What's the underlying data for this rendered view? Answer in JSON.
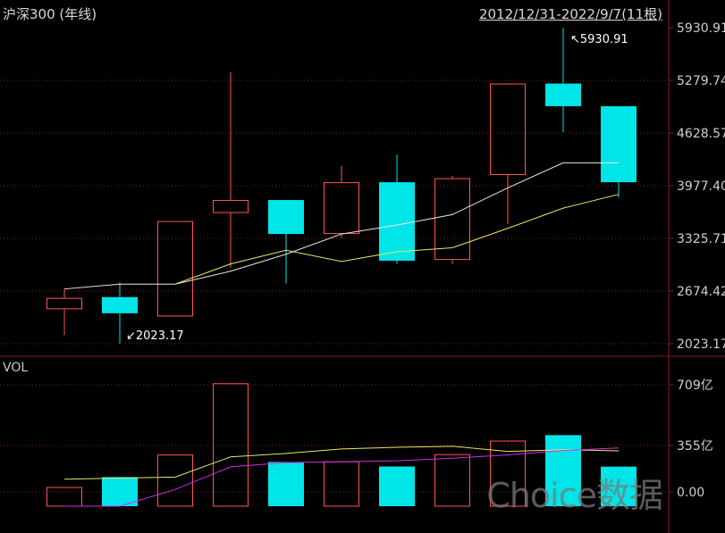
{
  "header": {
    "title": "沪深300 (年线)",
    "range": "2012/12/31-2022/9/7(11根)",
    "vol_label": "VOL"
  },
  "watermark": "Choice数据",
  "annotations": {
    "high": "↖5930.91",
    "low": "↙2023.17"
  },
  "colors": {
    "background": "#000000",
    "up": "#ff5555",
    "down": "#00e5e8",
    "ma_white": "#e8e8e8",
    "ma_yellow": "#e8e86a",
    "vol_ma_purple": "#d030e8",
    "grid": "#8a1c1c"
  },
  "chart_data": [
    {
      "type": "candlestick",
      "price_ticks": [
        "5930.91",
        "5279.74",
        "4628.57",
        "3977.40",
        "3325.71",
        "2674.42",
        "2023.17"
      ],
      "ylim": [
        2023.17,
        5930.91
      ],
      "candles": [
        {
          "open": 2450,
          "high": 2700,
          "low": 2130,
          "close": 2590
        },
        {
          "open": 2600,
          "high": 2780,
          "low": 2023.17,
          "close": 2400
        },
        {
          "open": 2360,
          "high": 3540,
          "low": 2360,
          "close": 3540
        },
        {
          "open": 3640,
          "high": 5380,
          "low": 2960,
          "close": 3800
        },
        {
          "open": 3800,
          "high": 3800,
          "low": 2770,
          "close": 3380
        },
        {
          "open": 3380,
          "high": 4220,
          "low": 3330,
          "close": 4020
        },
        {
          "open": 4020,
          "high": 4360,
          "low": 3010,
          "close": 3050
        },
        {
          "open": 3060,
          "high": 4100,
          "low": 3010,
          "close": 4070
        },
        {
          "open": 4110,
          "high": 5240,
          "low": 3500,
          "close": 5240
        },
        {
          "open": 5240,
          "high": 5930.91,
          "low": 4640,
          "close": 4960
        },
        {
          "open": 4960,
          "high": 4960,
          "low": 3830,
          "close": 4020
        }
      ],
      "ma_white": [
        2700,
        2760,
        2760,
        2920,
        3130,
        3380,
        3490,
        3620,
        3950,
        4260,
        4260
      ],
      "ma_yellow": [
        null,
        null,
        2760,
        3010,
        3180,
        3040,
        3160,
        3210,
        3450,
        3700,
        3870
      ]
    },
    {
      "type": "bar",
      "volume_ticks": [
        "709亿",
        "355亿",
        "0.00"
      ],
      "ylim": [
        0,
        709
      ],
      "volumes": [
        112,
        170,
        302,
        718,
        258,
        262,
        232,
        304,
        383,
        415,
        231
      ],
      "ma_yellow": [
        158,
        164,
        170,
        288,
        308,
        334,
        344,
        350,
        320,
        330,
        323
      ],
      "ma_purple": [
        null,
        null,
        98,
        230,
        255,
        260,
        265,
        280,
        300,
        325,
        340
      ]
    }
  ]
}
